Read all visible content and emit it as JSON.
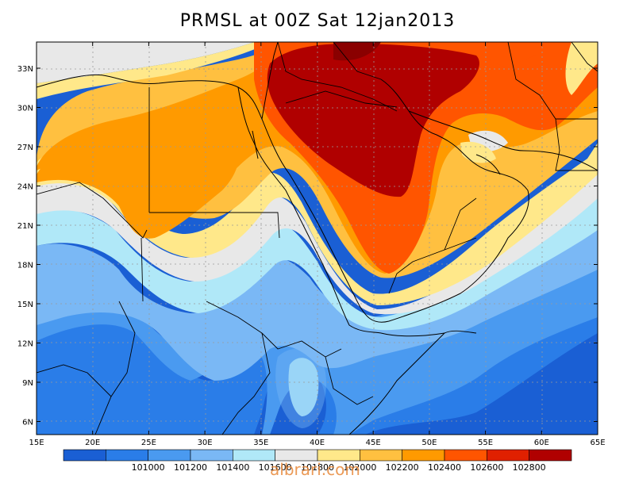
{
  "title": "PRMSL at 00Z Sat 12jan2013",
  "watermark": "albrari.com",
  "map": {
    "lon_range": [
      15,
      65
    ],
    "lat_range": [
      5,
      35
    ],
    "lon_ticks": [
      "15E",
      "20E",
      "25E",
      "30E",
      "35E",
      "40E",
      "45E",
      "50E",
      "55E",
      "60E",
      "65E"
    ],
    "lat_ticks": [
      "33N",
      "30N",
      "27N",
      "24N",
      "21N",
      "18N",
      "15N",
      "12N",
      "9N",
      "6N"
    ]
  },
  "colorbar": {
    "colors": [
      "#1a5fd4",
      "#2a7de8",
      "#4a9af0",
      "#7ab8f5",
      "#b0e8f8",
      "#e8e8e8",
      "#ffe88a",
      "#ffc040",
      "#ff9a00",
      "#ff5500",
      "#e02000",
      "#b00000"
    ],
    "labels": [
      "101000",
      "101200",
      "101400",
      "101600",
      "101800",
      "102000",
      "102200",
      "102400",
      "102600",
      "102800"
    ]
  }
}
